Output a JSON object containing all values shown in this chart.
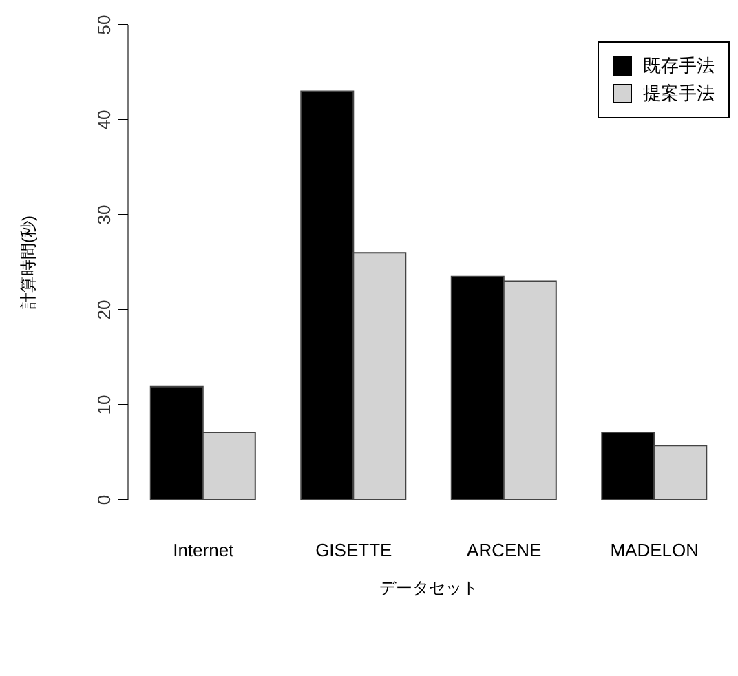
{
  "chart_data": {
    "type": "bar",
    "xlabel": "データセット",
    "ylabel": "計算時間(秒)",
    "categories": [
      "Internet",
      "GISETTE",
      "ARCENE",
      "MADELON"
    ],
    "series": [
      {
        "name": "既存手法",
        "color": "#000000",
        "values": [
          11.9,
          43,
          23.5,
          7.1
        ]
      },
      {
        "name": "提案手法",
        "color": "#d3d3d3",
        "values": [
          7.1,
          26,
          23,
          5.7
        ]
      }
    ],
    "ylim": [
      0,
      50
    ],
    "yticks": [
      0,
      10,
      20,
      30,
      40,
      50
    ],
    "grid": false,
    "legend": "top right"
  }
}
